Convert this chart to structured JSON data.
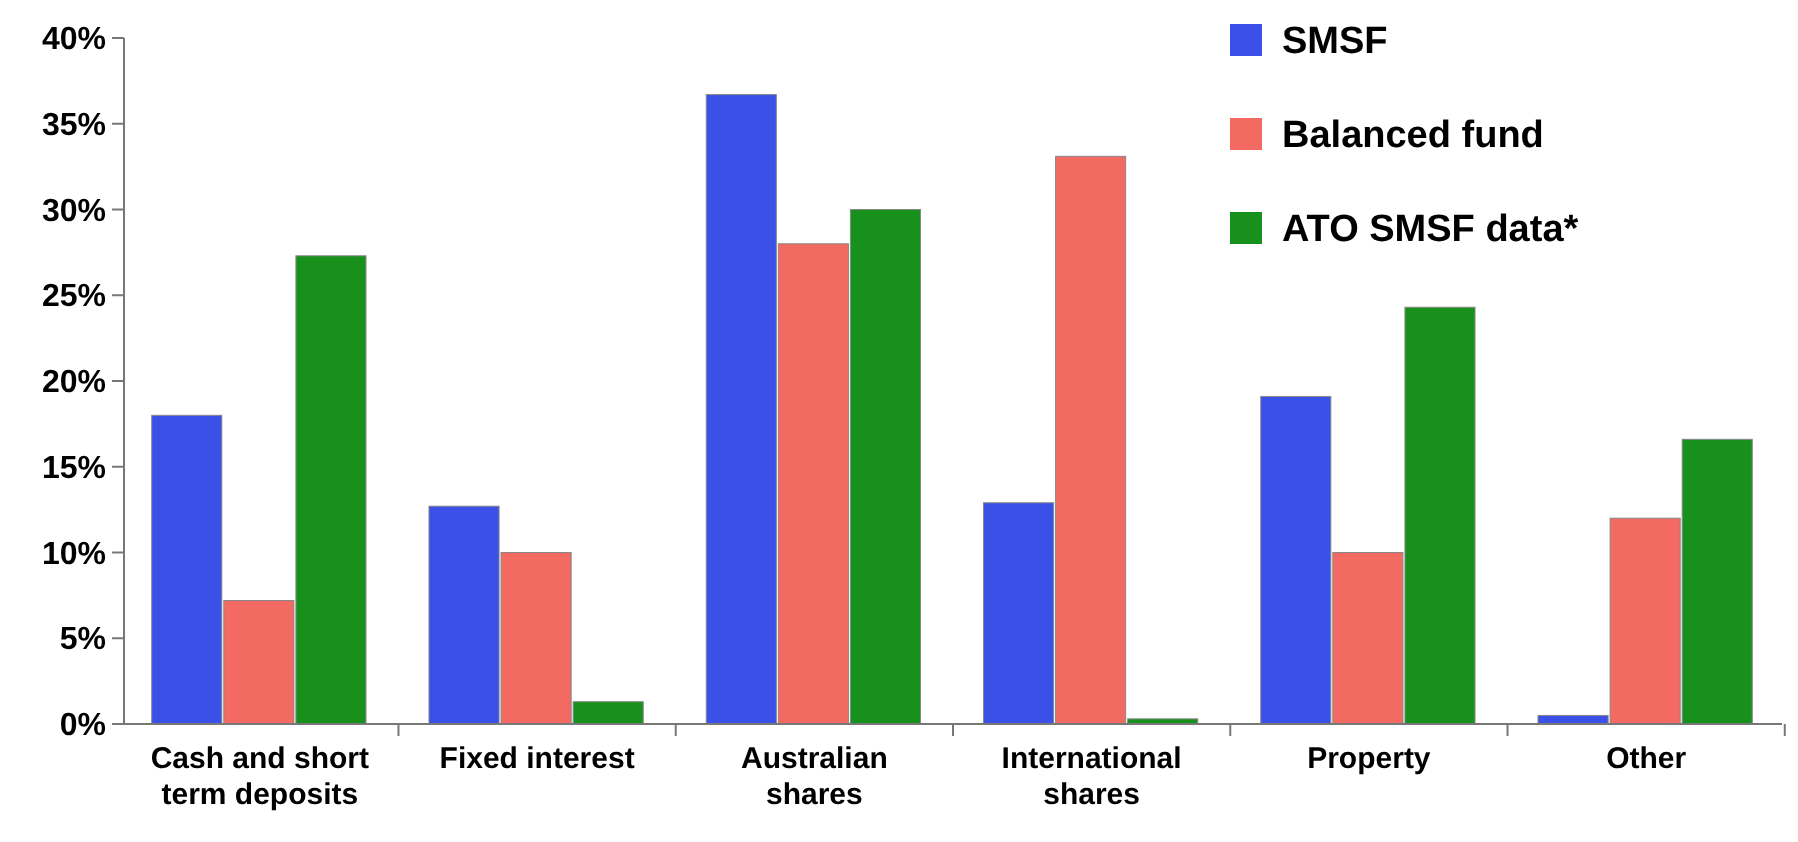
{
  "chart_data": {
    "type": "bar",
    "categories": [
      "Cash and short term deposits",
      "Fixed interest",
      "Australian shares",
      "International shares",
      "Property",
      "Other"
    ],
    "series": [
      {
        "name": "SMSF",
        "color": "#3b50e6",
        "values": [
          18,
          12.7,
          36.7,
          12.9,
          19.1,
          0.5
        ]
      },
      {
        "name": "Balanced fund",
        "color": "#f26a62",
        "values": [
          7.2,
          10,
          28,
          33.1,
          10,
          12
        ]
      },
      {
        "name": "ATO SMSF data*",
        "color": "#17911b",
        "values": [
          27.3,
          1.3,
          30,
          0.3,
          24.3,
          16.6
        ]
      }
    ],
    "ylim": [
      0,
      40
    ],
    "yticks": [
      {
        "value": 0,
        "label": "0%"
      },
      {
        "value": 5,
        "label": "5%"
      },
      {
        "value": 10,
        "label": "10%"
      },
      {
        "value": 15,
        "label": "15%"
      },
      {
        "value": 20,
        "label": "20%"
      },
      {
        "value": 25,
        "label": "25%"
      },
      {
        "value": 30,
        "label": "30%"
      },
      {
        "value": 35,
        "label": "35%"
      },
      {
        "value": 40,
        "label": "40%"
      }
    ],
    "grid": false,
    "legend": "top right"
  }
}
